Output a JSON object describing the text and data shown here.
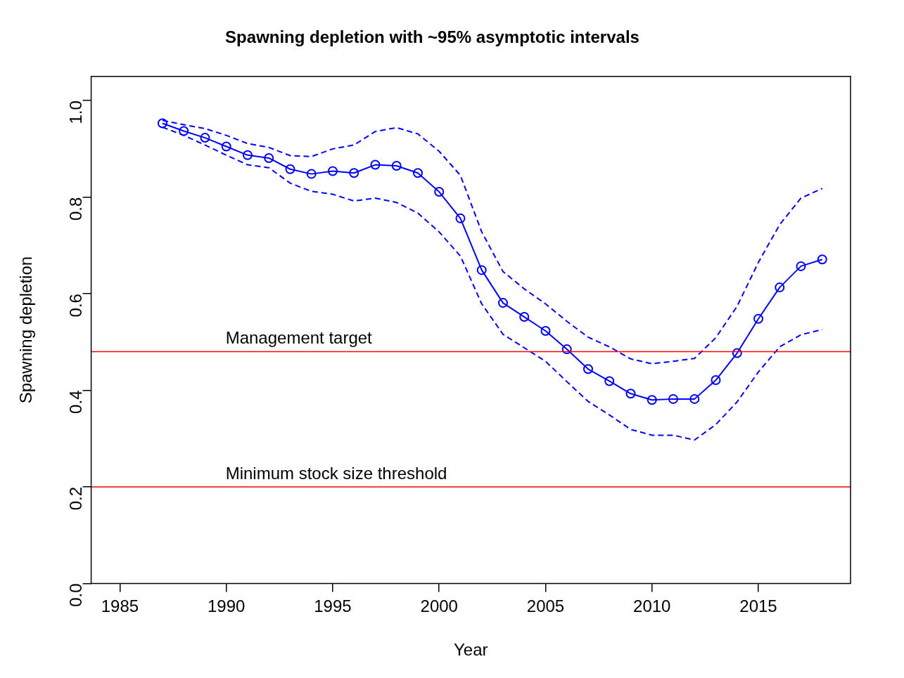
{
  "chart_data": {
    "type": "line",
    "title": "Spawning depletion with ~95% asymptotic intervals",
    "xlabel": "Year",
    "ylabel": "Spawning depletion",
    "x": [
      1987,
      1988,
      1989,
      1990,
      1991,
      1992,
      1993,
      1994,
      1995,
      1996,
      1997,
      1998,
      1999,
      2000,
      2001,
      2002,
      2003,
      2004,
      2005,
      2006,
      2007,
      2008,
      2009,
      2010,
      2011,
      2012,
      2013,
      2014,
      2015,
      2016,
      2017,
      2018
    ],
    "series": [
      {
        "color": "#0000ff",
        "marker": "circle",
        "line_style": "solid",
        "values": [
          0.953,
          0.937,
          0.923,
          0.905,
          0.887,
          0.881,
          0.858,
          0.848,
          0.854,
          0.85,
          0.867,
          0.865,
          0.85,
          0.811,
          0.756,
          0.649,
          0.581,
          0.552,
          0.523,
          0.485,
          0.444,
          0.419,
          0.393,
          0.38,
          0.382,
          0.382,
          0.421,
          0.477,
          0.548,
          0.613,
          0.657,
          0.671
        ]
      },
      {
        "color": "#0000ff",
        "marker": "none",
        "line_style": "dashed",
        "values": [
          0.959,
          0.95,
          0.942,
          0.928,
          0.911,
          0.903,
          0.886,
          0.884,
          0.9,
          0.908,
          0.936,
          0.944,
          0.931,
          0.895,
          0.845,
          0.728,
          0.646,
          0.61,
          0.579,
          0.543,
          0.51,
          0.49,
          0.465,
          0.455,
          0.46,
          0.466,
          0.509,
          0.574,
          0.665,
          0.743,
          0.798,
          0.818
        ]
      },
      {
        "color": "#0000ff",
        "marker": "none",
        "line_style": "dashed",
        "values": [
          0.945,
          0.928,
          0.908,
          0.887,
          0.867,
          0.861,
          0.829,
          0.812,
          0.806,
          0.792,
          0.798,
          0.789,
          0.767,
          0.728,
          0.678,
          0.579,
          0.516,
          0.488,
          0.46,
          0.418,
          0.377,
          0.349,
          0.319,
          0.307,
          0.307,
          0.297,
          0.329,
          0.376,
          0.438,
          0.49,
          0.515,
          0.526
        ]
      }
    ],
    "xlim": [
      1983.65,
      2019.33
    ],
    "xticks": [
      1985,
      1990,
      1995,
      2000,
      2005,
      2010,
      2015
    ],
    "ylim": [
      0,
      1.05
    ],
    "yticks": [
      {
        "value": 0,
        "label": "0.0"
      },
      {
        "value": 0.2,
        "label": "0.2"
      },
      {
        "value": 0.4,
        "label": "0.4"
      },
      {
        "value": 0.6,
        "label": "0.6"
      },
      {
        "value": 0.8,
        "label": "0.8"
      },
      {
        "value": 1,
        "label": "1.0"
      }
    ],
    "ref_lines": [
      {
        "axis": "y",
        "value": 0.48,
        "label": "Management target",
        "color": "#ff0000"
      },
      {
        "axis": "y",
        "value": 0.2,
        "label": "Minimum stock size threshold",
        "color": "#ff0000"
      }
    ],
    "grid": false,
    "legend": false
  }
}
